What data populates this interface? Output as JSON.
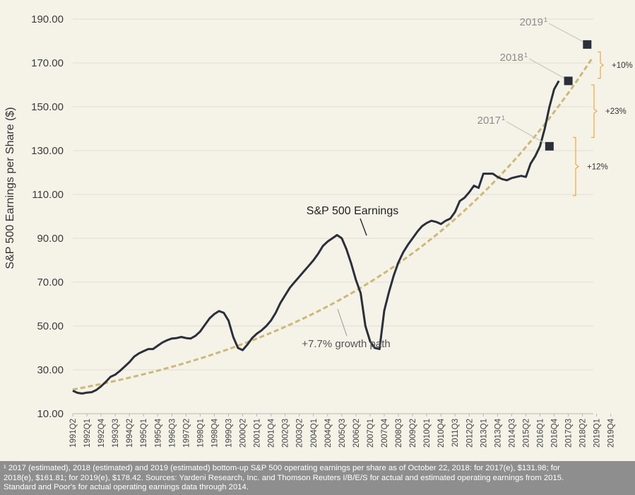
{
  "chart_data": {
    "type": "line",
    "title": "",
    "ylabel": "S&P 500 Earnings per Share  ($)",
    "xlabel": "",
    "ylim": [
      10,
      190
    ],
    "yticks": [
      "10.00",
      "30.00",
      "50.00",
      "70.00",
      "90.00",
      "110.00",
      "130.00",
      "150.00",
      "170.00",
      "190.00"
    ],
    "xticks": [
      "1991Q2",
      "1992Q1",
      "1992Q4",
      "1993Q3",
      "1994Q2",
      "1995Q1",
      "1995Q4",
      "1996Q3",
      "1997Q2",
      "1998Q1",
      "1998Q4",
      "1999Q3",
      "2000Q2",
      "2001Q1",
      "2001Q4",
      "2002Q3",
      "2003Q2",
      "2004Q1",
      "2004Q4",
      "2005Q3",
      "2006Q2",
      "2007Q1",
      "2007Q4",
      "2008Q3",
      "2009Q2",
      "2010Q1",
      "2010Q4",
      "2011Q3",
      "2012Q2",
      "2013Q1",
      "2013Q4",
      "2014Q3",
      "2015Q2",
      "2016Q1",
      "2016Q4",
      "2017Q3",
      "2018Q2",
      "2019Q1",
      "2019Q4"
    ],
    "grid": true,
    "series": [
      {
        "name": "S&P 500 Earnings",
        "color": "#2b2f3a",
        "values": [
          20.5,
          19.5,
          19.2,
          19.6,
          19.8,
          20.8,
          22.5,
          24.5,
          26.8,
          27.8,
          29.5,
          31.5,
          33.5,
          36,
          37.5,
          38.5,
          39.5,
          39.5,
          41,
          42.5,
          43.5,
          44.3,
          44.5,
          45,
          44.5,
          44.3,
          45.5,
          47.5,
          50.5,
          53.5,
          55.5,
          56.8,
          56,
          52.5,
          45,
          40,
          39,
          41.5,
          44.5,
          46.5,
          48,
          50,
          52.5,
          56,
          60.5,
          64,
          67.5,
          70,
          72.5,
          75,
          77.5,
          80,
          83,
          86.5,
          88.5,
          90,
          91.5,
          90,
          85,
          78.5,
          71,
          65,
          50,
          43,
          40,
          39.5,
          57,
          65.5,
          73,
          79,
          83.5,
          87,
          90,
          93,
          95.5,
          97,
          98,
          97.5,
          96.5,
          98,
          99,
          102,
          107,
          108.5,
          111,
          114,
          113,
          119.5,
          119.5,
          119.5,
          118,
          117,
          116.5,
          117.5,
          118,
          118.5,
          118,
          124,
          127.5,
          131.98,
          140,
          150,
          158,
          161.81
        ]
      },
      {
        "name": "+7.7% growth path",
        "color": "#cbb977",
        "style": "dashed",
        "start": 21.0,
        "end": 172.0
      }
    ],
    "markers": [
      {
        "label": "2017",
        "sup": "1",
        "value": 131.98,
        "index": 101
      },
      {
        "label": "2018",
        "sup": "1",
        "value": 161.81,
        "index": 105
      },
      {
        "label": "2019",
        "sup": "1",
        "value": 178.42,
        "index": 109
      }
    ],
    "brackets": [
      {
        "label": "+12%",
        "from": 109.5,
        "to": 136
      },
      {
        "label": "+23%",
        "from": 136,
        "to": 160
      },
      {
        "label": "+10%",
        "from": 163,
        "to": 175
      }
    ],
    "annotations": [
      {
        "text": "S&P 500 Earnings"
      },
      {
        "text": "+7.7% growth path"
      }
    ]
  },
  "footnote": {
    "lines": [
      "¹ 2017 (estimated), 2018 (estimated) and 2019 (estimated) bottom-up S&P 500 operating earnings per share as of October 22, 2018: for 2017(e), $131.98; for",
      "2018(e), $161.81; for 2019(e), $178.42. Sources: Yardeni Research, Inc. and Thomson Reuters I/B/E/S for actual and estimated operating earnings from 2015.",
      "Standard and Poor's for actual operating earnings data through 2014."
    ]
  }
}
